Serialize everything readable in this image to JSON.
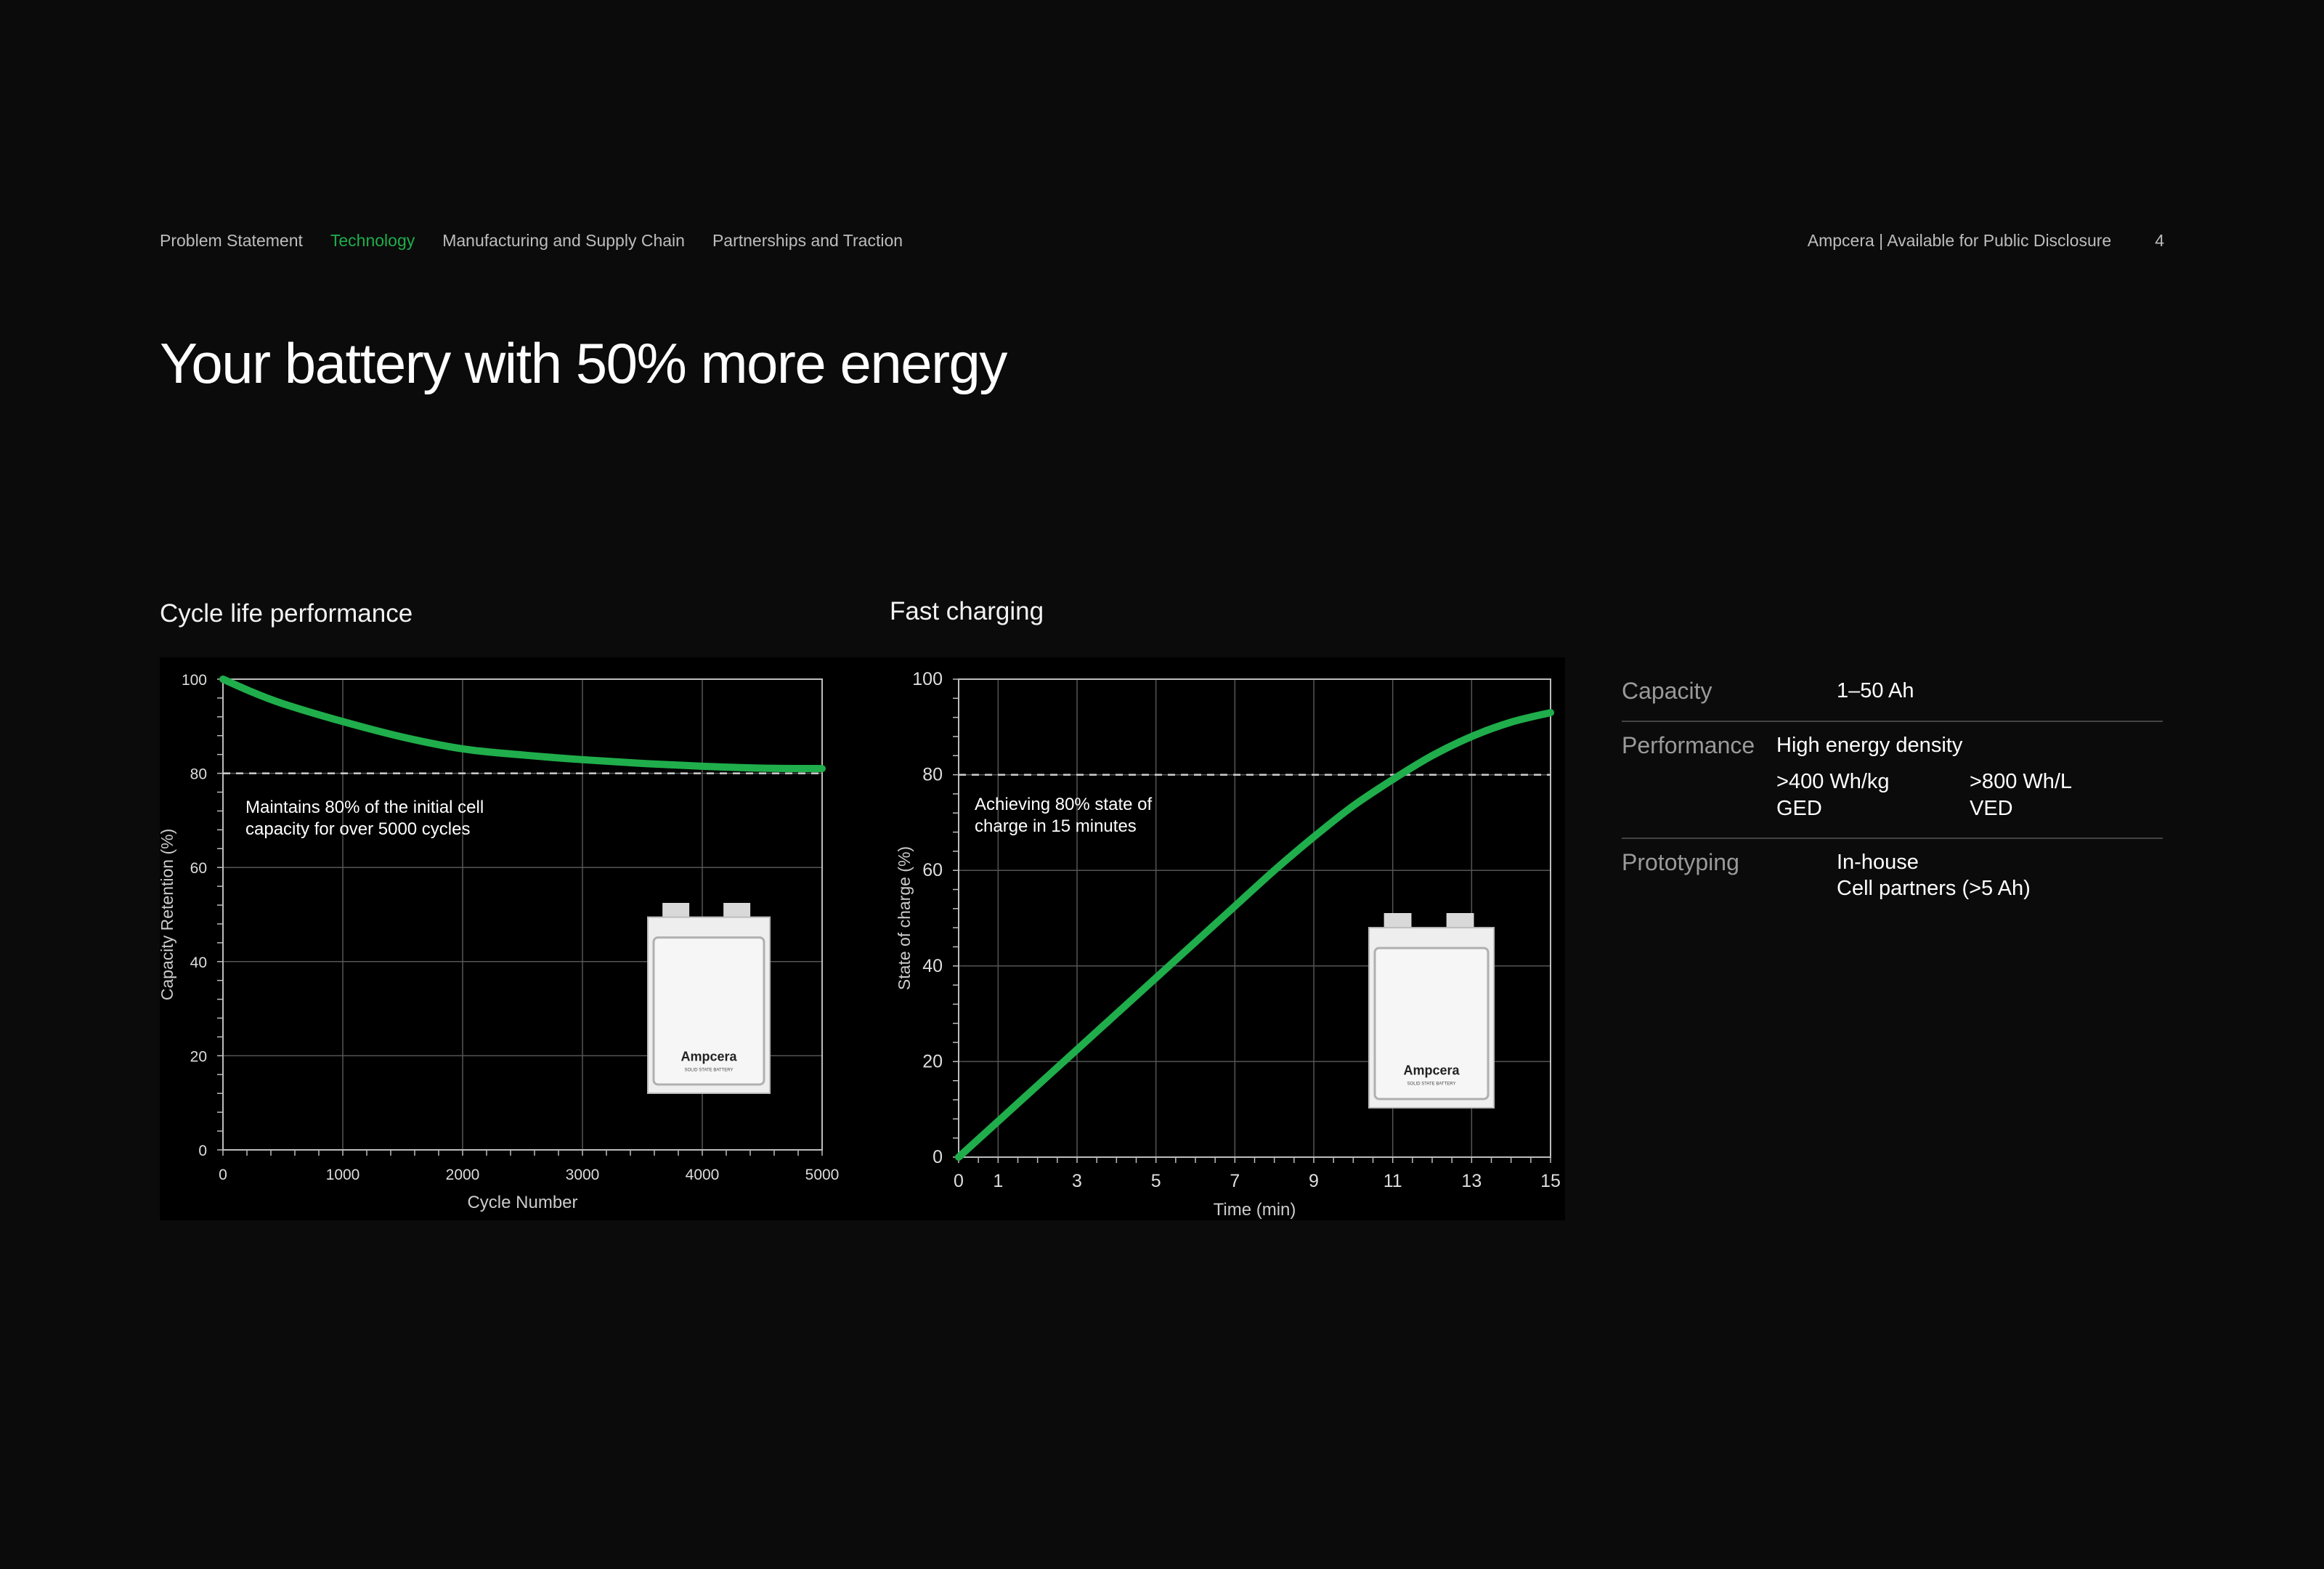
{
  "nav": {
    "items": [
      "Problem Statement",
      "Technology",
      "Manufacturing and Supply Chain",
      "Partnerships and Traction"
    ],
    "active": "Technology"
  },
  "header_right": {
    "company": "Ampcera | Available for Public Disclosure",
    "page": "4"
  },
  "headline": "Your battery with 50% more energy",
  "colors": {
    "accent": "#1fae4b",
    "background": "#0b0b0b"
  },
  "chart_data": [
    {
      "type": "line",
      "title": "Cycle life performance",
      "xlabel": "Cycle Number",
      "ylabel": "Capacity Retention (%)",
      "xlim": [
        0,
        5000
      ],
      "ylim": [
        0,
        100
      ],
      "x_ticks": [
        "0",
        "1000",
        "2000",
        "3000",
        "4000",
        "5000"
      ],
      "y_ticks": [
        "0",
        "20",
        "40",
        "60",
        "80",
        "100"
      ],
      "reference_line": 80,
      "annotation": [
        "Maintains 80% of the initial cell",
        "capacity for over 5000 cycles"
      ],
      "grid": true,
      "series": [
        {
          "color": "#1fae4b",
          "x": [
            0,
            250,
            500,
            1000,
            1500,
            2000,
            2500,
            3000,
            3500,
            4000,
            4500,
            5000
          ],
          "y": [
            100,
            97.2,
            94.8,
            91,
            87.7,
            85.2,
            83.9,
            82.9,
            82.1,
            81.5,
            81.1,
            81
          ]
        }
      ]
    },
    {
      "type": "line",
      "title": "Fast charging",
      "xlabel": "Time (min)",
      "ylabel": "State of charge (%)",
      "xlim": [
        0,
        15
      ],
      "ylim": [
        0,
        100
      ],
      "x_ticks": [
        "0",
        "1",
        "3",
        "5",
        "7",
        "9",
        "11",
        "13",
        "15"
      ],
      "y_ticks": [
        "0",
        "20",
        "40",
        "60",
        "80",
        "100"
      ],
      "reference_line": 80,
      "annotation": [
        "Achieving 80% state of",
        "charge in 15 minutes"
      ],
      "grid": true,
      "series": [
        {
          "color": "#1fae4b",
          "x": [
            0,
            1,
            2,
            3,
            4,
            5,
            6,
            7,
            8,
            9,
            10,
            11,
            12,
            13,
            14,
            15
          ],
          "y": [
            0,
            7.5,
            15,
            22.5,
            30,
            37.5,
            45,
            52.5,
            60,
            67,
            73.5,
            79,
            84,
            88,
            91,
            93
          ]
        }
      ]
    }
  ],
  "battery_image": {
    "brand": "Ampcera",
    "tagline": "SOLID STATE BATTERY"
  },
  "specs": {
    "capacity": {
      "label": "Capacity",
      "value": "1–50 Ah"
    },
    "performance": {
      "label": "Performance",
      "value": "High energy density",
      "ged_value": ">400 Wh/kg",
      "ged_label": "GED",
      "ved_value": ">800 Wh/L",
      "ved_label": "VED"
    },
    "prototyping": {
      "label": "Prototyping",
      "line1": "In-house",
      "line2": "Cell partners (>5 Ah)"
    }
  }
}
